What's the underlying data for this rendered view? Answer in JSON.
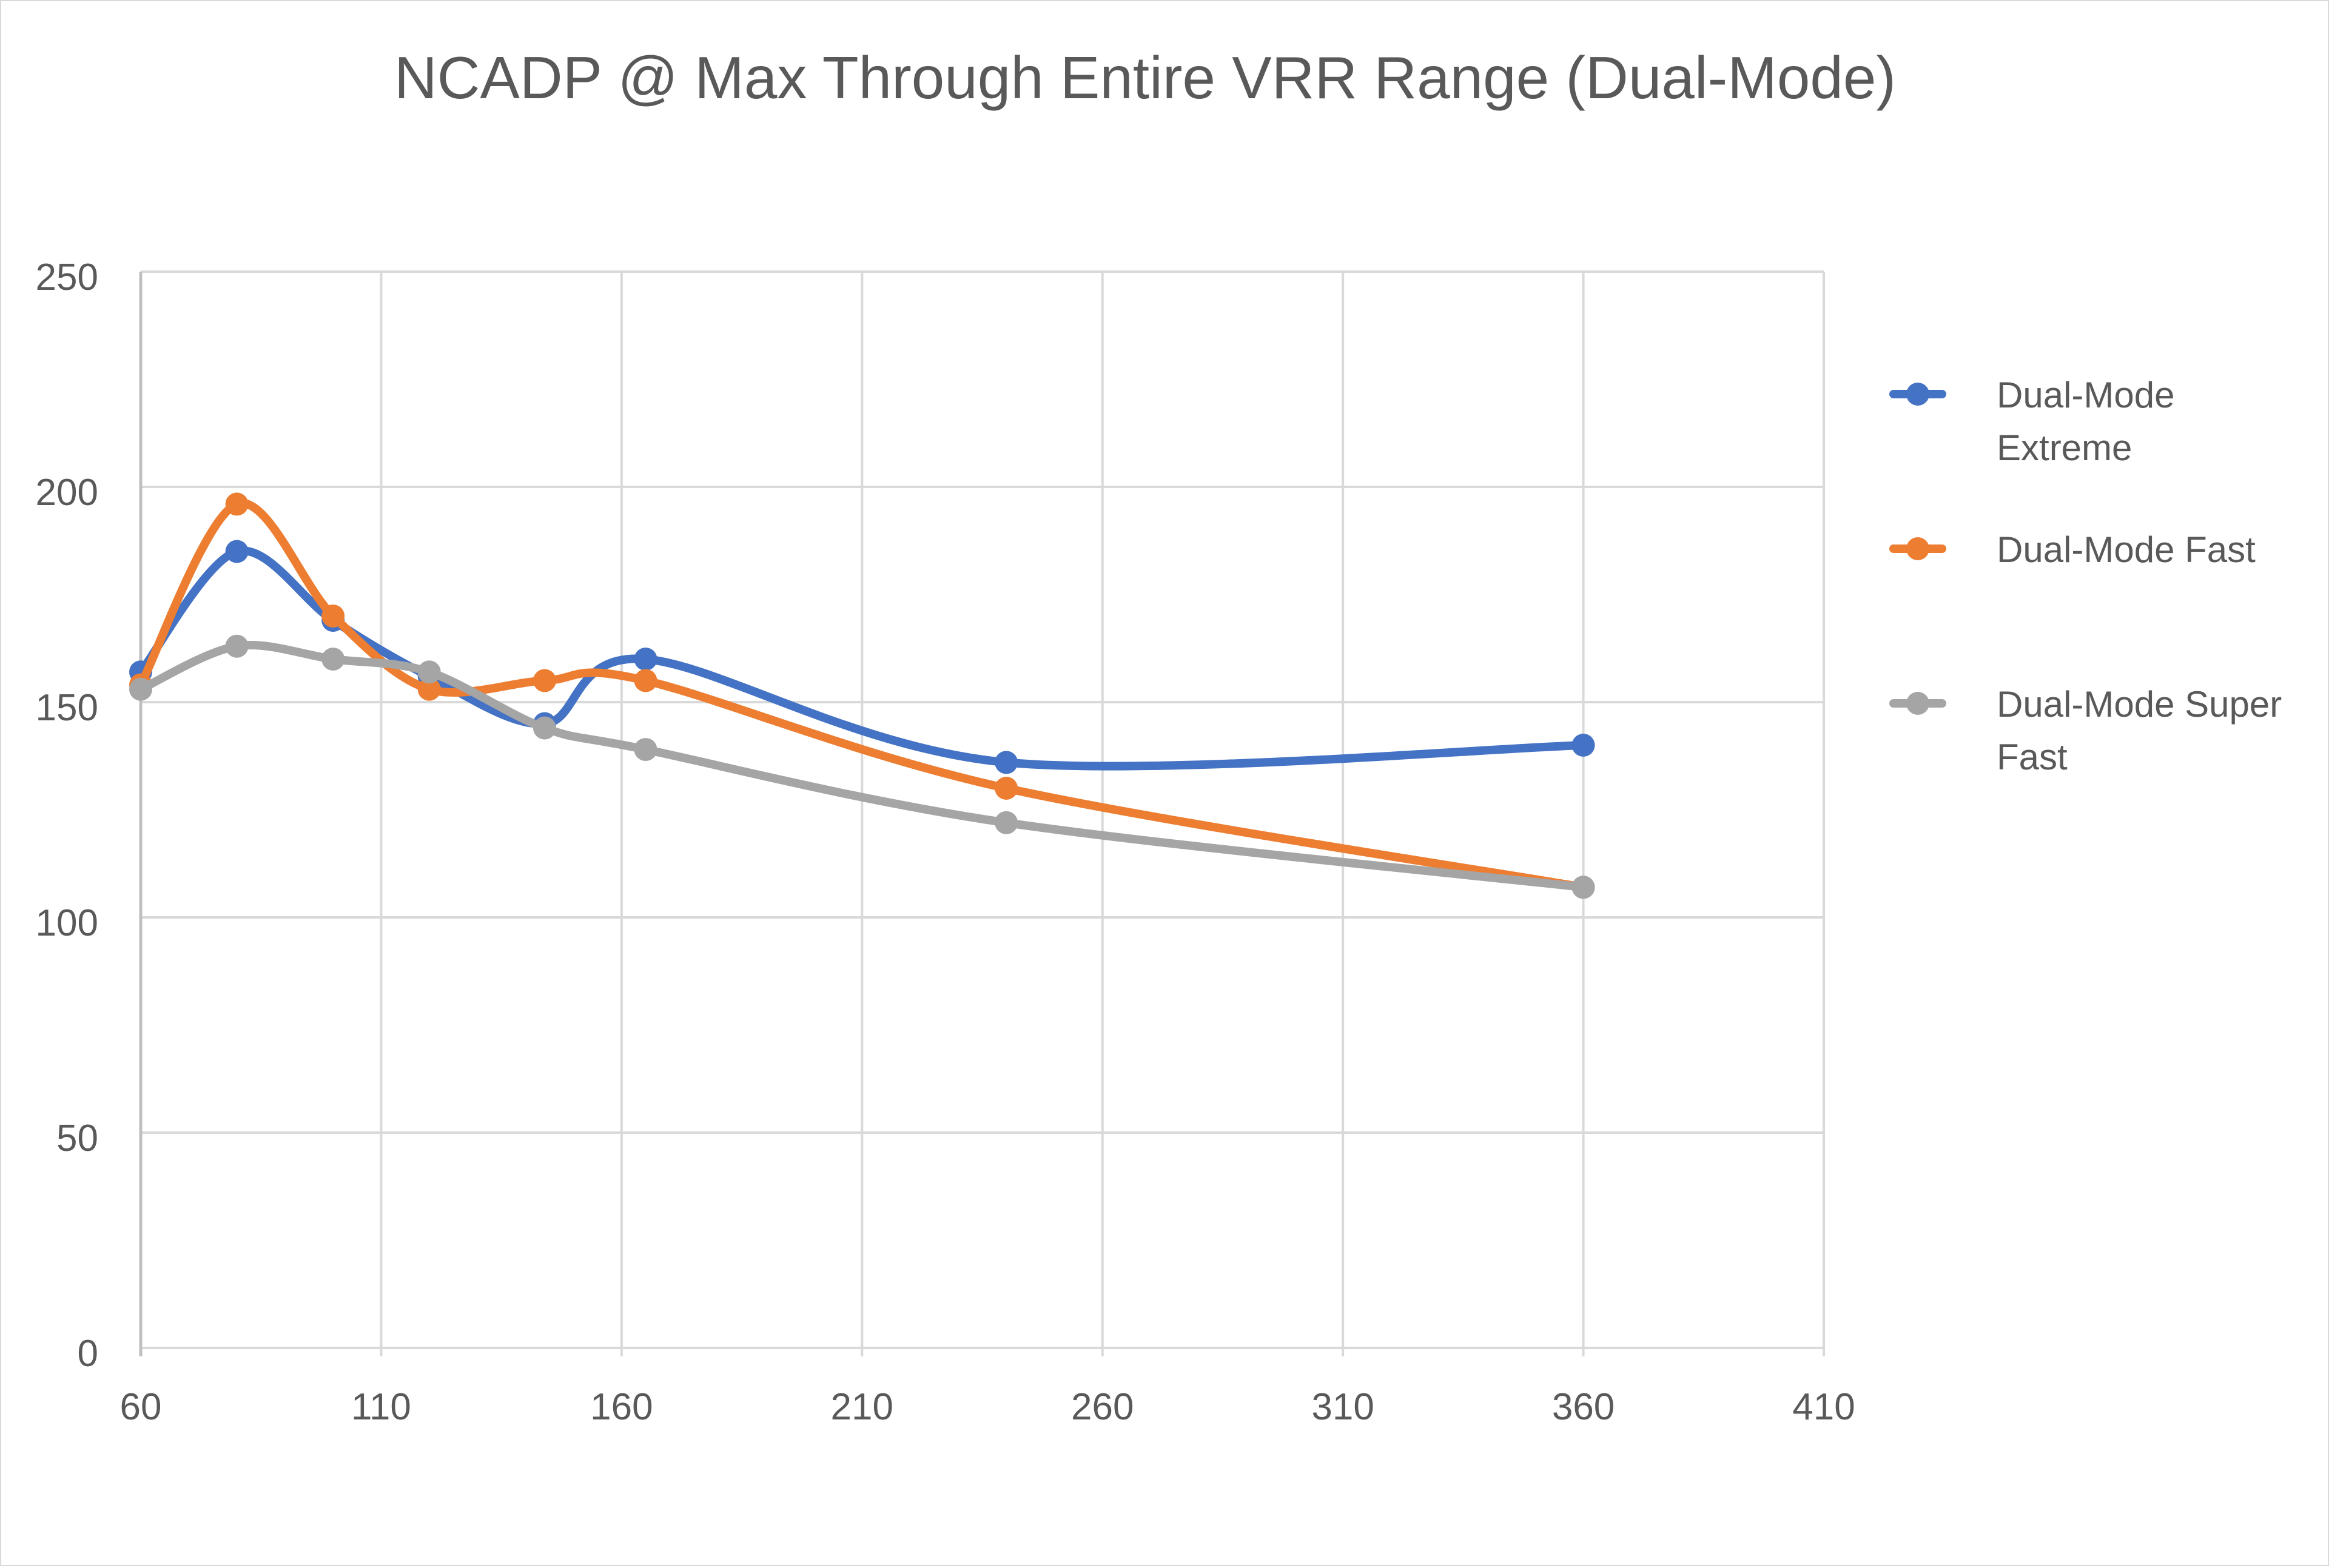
{
  "chart_data": {
    "type": "line",
    "title": "NCADP @ Max Through Entire VRR Range (Dual-Mode)",
    "xlabel": "",
    "ylabel": "",
    "xlim": [
      60,
      410
    ],
    "ylim": [
      0,
      250
    ],
    "x_ticks": [
      60,
      110,
      160,
      210,
      260,
      310,
      360,
      410
    ],
    "y_ticks": [
      0,
      50,
      100,
      150,
      200,
      250
    ],
    "grid": true,
    "smoothed": true,
    "legend": "right",
    "x": [
      60,
      80,
      100,
      120,
      144,
      165,
      240,
      360
    ],
    "series": [
      {
        "name": "Dual-Mode Extreme",
        "color": "#4472c4",
        "values": [
          157,
          185,
          169,
          156,
          145,
          160,
          136,
          140
        ]
      },
      {
        "name": "Dual-Mode Fast",
        "color": "#ed7d31",
        "values": [
          154,
          196,
          170,
          153,
          155,
          155,
          130,
          107
        ]
      },
      {
        "name": "Dual-Mode Super Fast",
        "color": "#a5a5a5",
        "values": [
          153,
          163,
          160,
          157,
          144,
          139,
          122,
          107
        ]
      }
    ],
    "legend_lines": [
      [
        "Dual-Mode",
        "Extreme"
      ],
      [
        "Dual-Mode Fast"
      ],
      [
        "Dual-Mode Super",
        "Fast"
      ]
    ]
  }
}
